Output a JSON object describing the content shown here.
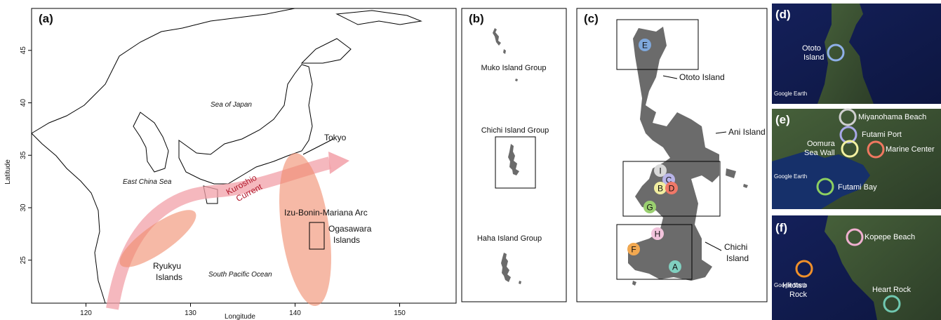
{
  "panel_a": {
    "label": "(a)",
    "x_label": "Longitude",
    "y_label": "Latitude",
    "xlim": [
      114.8,
      155.4
    ],
    "ylim": [
      20.9,
      49
    ],
    "xticks": [
      120,
      130,
      140,
      150
    ],
    "yticks": [
      25,
      30,
      35,
      40,
      45
    ],
    "labels": {
      "sea_of_japan": "Sea of Japan",
      "tokyo": "Tokyo",
      "east_china_sea": "East China Sea",
      "kuroshio": [
        "Kuroshio",
        "Current"
      ],
      "arc": "Izu-Bonin-Mariana Arc",
      "ogasawara": [
        "Ogasawara",
        "Islands"
      ],
      "ryukyu": [
        "Ryukyu",
        "Islands"
      ],
      "south_pacific": "South Pacific Ocean"
    }
  },
  "panel_b": {
    "label": "(b)",
    "muko": "Muko Island Group",
    "chichi": "Chichi Island Group",
    "haha": "Haha Island Group"
  },
  "panel_c": {
    "label": "(c)",
    "ototo": "Ototo Island",
    "ani": "Ani Island",
    "chichi": [
      "Chichi",
      "Island"
    ],
    "sites": [
      "E",
      "I",
      "C",
      "B",
      "D",
      "G",
      "H",
      "F",
      "A"
    ]
  },
  "panel_d": {
    "label": "(d)",
    "ototo": [
      "Ototo",
      "Island"
    ],
    "credit": "Google Earth"
  },
  "panel_e": {
    "label": "(e)",
    "miyanohama": "Miyanohama Beach",
    "futami_port": "Futami Port",
    "oomura": [
      "Oomura",
      "Sea Wall"
    ],
    "marine_center": "Marine Center",
    "futami_bay": "Futami Bay",
    "credit": "Google Earth"
  },
  "panel_f": {
    "label": "(f)",
    "kopepe": "Kopepe Beach",
    "hitotsu": [
      "Hitotsu",
      "Rock"
    ],
    "heart": "Heart Rock",
    "credit": "Google Earth"
  }
}
